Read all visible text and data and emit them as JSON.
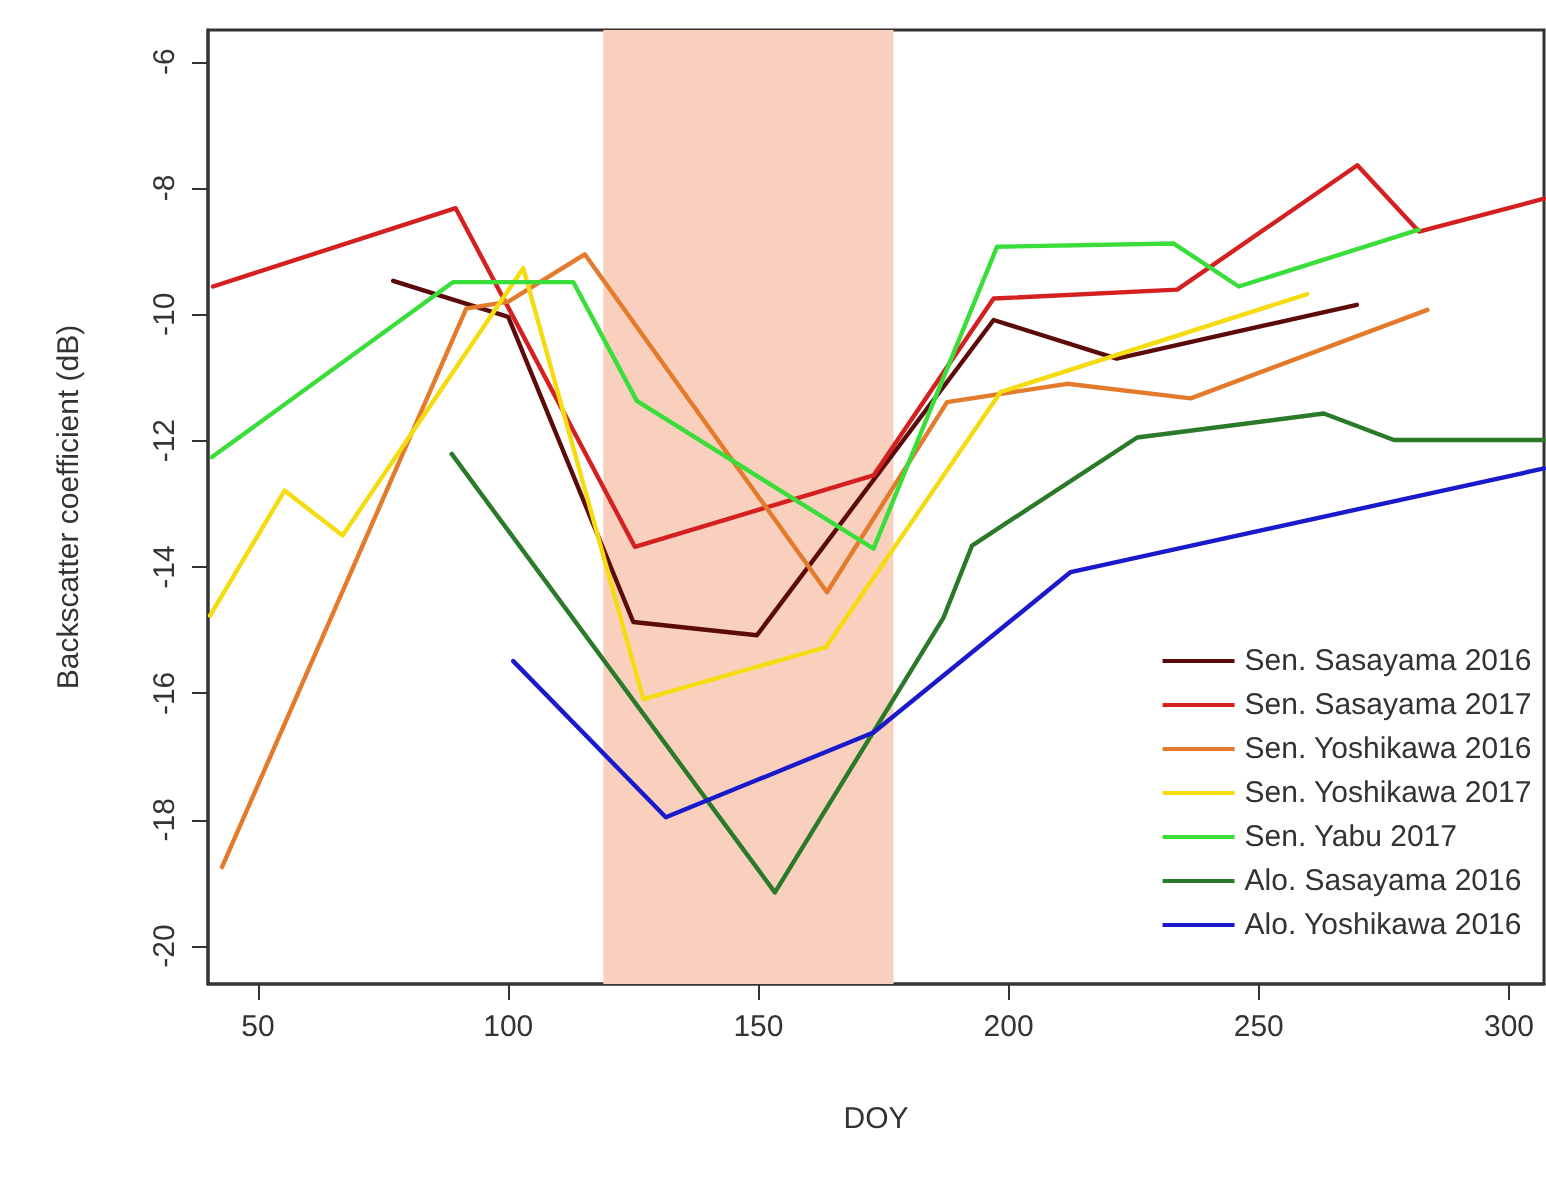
{
  "chart_data": {
    "type": "line",
    "xlabel": "DOY",
    "ylabel": "Backscatter coefficient (dB)",
    "xlim": [
      40,
      307
    ],
    "ylim": [
      -20.6,
      -5.5
    ],
    "xticks": [
      50,
      100,
      150,
      200,
      250,
      300
    ],
    "yticks": [
      -20,
      -18,
      -16,
      -14,
      -12,
      -10,
      -8,
      -6
    ],
    "grid": false,
    "legend": "bottom right",
    "marker": "none",
    "line_style": "solid",
    "bands": [
      {
        "axis": "x",
        "from": 119,
        "to": 177,
        "color": "#f8d0bd"
      }
    ],
    "series": [
      {
        "name": "Sen. Sasayama 2016",
        "color": "#5c0a0a",
        "x": [
          77,
          100,
          125,
          149.7,
          197,
          221.6,
          269.6
        ],
        "values": [
          -9.47,
          -10.04,
          -14.87,
          -15.08,
          -10.09,
          -10.7,
          -9.85
        ]
      },
      {
        "name": "Sen. Sasayama 2017",
        "color": "#d42020",
        "x": [
          41,
          89.5,
          125.3,
          173,
          197,
          233.7,
          269.7,
          282,
          307
        ],
        "values": [
          -9.56,
          -8.32,
          -13.68,
          -12.55,
          -9.75,
          -9.61,
          -7.64,
          -8.69,
          -8.17
        ]
      },
      {
        "name": "Sen. Yoshikawa 2016",
        "color": "#e47a2c",
        "x": [
          42.8,
          91.6,
          100,
          115.3,
          163.7,
          187.7,
          211.7,
          236.4,
          283.7
        ],
        "values": [
          -18.75,
          -9.91,
          -9.8,
          -9.05,
          -14.4,
          -11.39,
          -11.1,
          -11.33,
          -9.93
        ]
      },
      {
        "name": "Sen. Yoshikawa 2017",
        "color": "#f5dc10",
        "x": [
          40.4,
          55.3,
          66.9,
          103,
          127,
          163.5,
          198.4,
          259.7
        ],
        "values": [
          -14.77,
          -12.79,
          -13.5,
          -9.27,
          -16.09,
          -15.27,
          -11.23,
          -9.68
        ]
      },
      {
        "name": "Sen. Yabu 2017",
        "color": "#3ade3a",
        "x": [
          40.8,
          89,
          113,
          125.7,
          173,
          197.7,
          233,
          246,
          282
        ],
        "values": [
          -12.26,
          -9.49,
          -9.49,
          -11.37,
          -13.71,
          -8.93,
          -8.88,
          -9.56,
          -8.66
        ]
      },
      {
        "name": "Alo. Sasayama 2016",
        "color": "#2a7a2a",
        "x": [
          88.7,
          153.3,
          187,
          192.7,
          225.7,
          263,
          277,
          307
        ],
        "values": [
          -12.21,
          -19.15,
          -14.8,
          -13.66,
          -11.95,
          -11.57,
          -11.99,
          -11.99
        ]
      },
      {
        "name": "Alo. Yoshikawa 2016",
        "color": "#1a1acc",
        "x": [
          101,
          131.5,
          173,
          212.4,
          307
        ],
        "values": [
          -15.49,
          -17.96,
          -16.62,
          -14.08,
          -12.44
        ]
      }
    ]
  }
}
